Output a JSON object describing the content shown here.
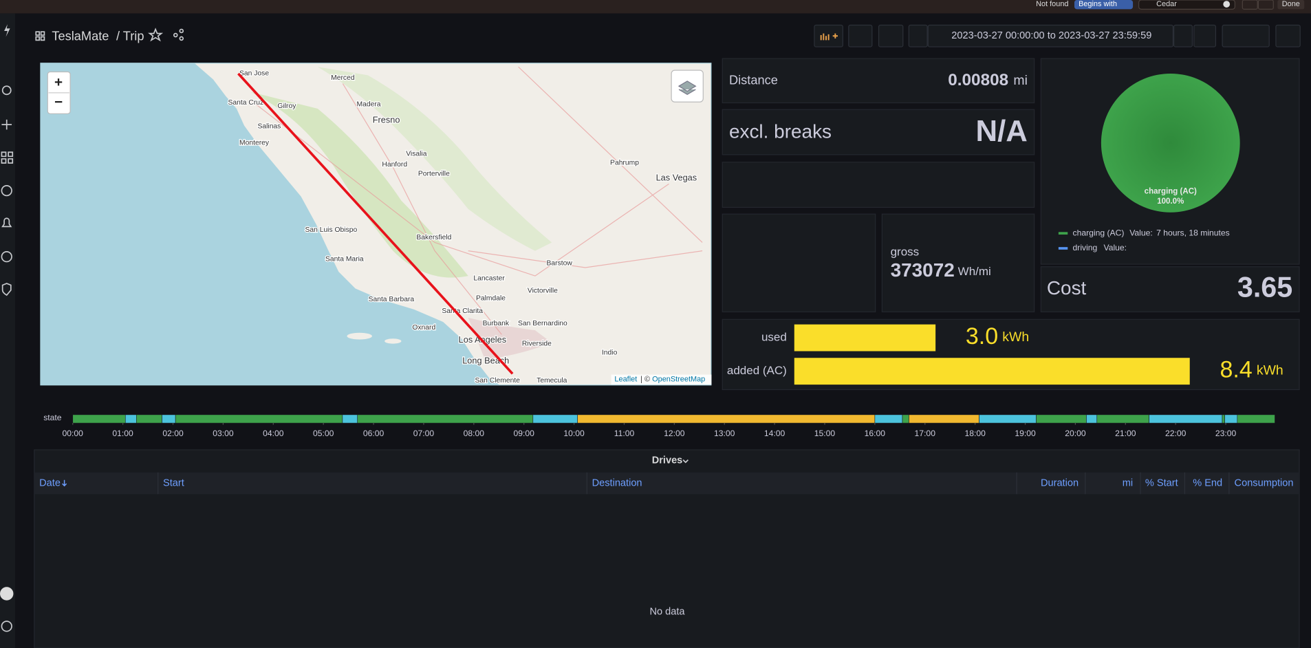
{
  "browser_bar": {
    "status": "Not found",
    "match_mode": "Begins with",
    "search": "Cedar",
    "done": "Done"
  },
  "header": {
    "title": "TeslaMate",
    "page": "/ Trip",
    "time_range": "2023-03-27 00:00:00 to 2023-03-27 23:59:59"
  },
  "map": {
    "zoom_in": "+",
    "zoom_out": "−",
    "labels": [
      "San Jose",
      "Merced",
      "Madera",
      "Fresno",
      "Santa Cruz",
      "Gilroy",
      "Salinas",
      "Monterey",
      "Visalia",
      "Hanford",
      "Porterville",
      "Pahrump",
      "Las Vegas",
      "San Luis Obispo",
      "Bakersfield",
      "Santa Maria",
      "Lancaster",
      "Palmdale",
      "Barstow",
      "Victorville",
      "Santa Barbara",
      "Santa Clarita",
      "Burbank",
      "San Bernardino",
      "Oxnard",
      "Los Angeles",
      "Riverside",
      "Long Beach",
      "Indio",
      "San Clemente",
      "Temecula"
    ],
    "attribution_leaflet": "Leaflet",
    "attribution_sep": "| ©",
    "attribution_osm": "OpenStreetMap"
  },
  "stats": {
    "distance": {
      "label": "Distance",
      "value": "0.00808",
      "unit": "mi"
    },
    "excl_breaks": {
      "label": "excl. breaks",
      "value": "N/A"
    },
    "gross": {
      "label": "gross",
      "value": "373072",
      "unit": "Wh/mi"
    },
    "cost": {
      "label": "Cost",
      "value": "3.65"
    }
  },
  "chart_data": [
    {
      "type": "pie",
      "categories": [
        "charging (AC)",
        "driving"
      ],
      "values": [
        100,
        0
      ],
      "value_labels": [
        "100.0%",
        null
      ],
      "colors": [
        "#3ea34b",
        "#5794f2"
      ],
      "legend_value_prefix": "Value:",
      "legend_values": [
        "7 hours, 18 minutes",
        null
      ]
    },
    {
      "type": "bargauge",
      "categories": [
        "used",
        "added (AC)"
      ],
      "values": [
        3.0,
        8.4
      ],
      "value_labels": [
        "3.0",
        "8.4"
      ],
      "unit": "kWh",
      "color": "#fade2a",
      "xlim": [
        0,
        8.4
      ]
    },
    {
      "type": "state-timeline",
      "label": "state",
      "xlim": [
        0,
        24
      ],
      "segments": [
        {
          "start": 0,
          "end": 1.05,
          "color": "#3ea34b"
        },
        {
          "start": 1.05,
          "end": 1.27,
          "color": "#4cc3dd"
        },
        {
          "start": 1.27,
          "end": 1.78,
          "color": "#3ea34b"
        },
        {
          "start": 1.78,
          "end": 2.05,
          "color": "#4cc3dd"
        },
        {
          "start": 2.05,
          "end": 5.38,
          "color": "#3ea34b"
        },
        {
          "start": 5.38,
          "end": 5.68,
          "color": "#4cc3dd"
        },
        {
          "start": 5.68,
          "end": 9.18,
          "color": "#3ea34b"
        },
        {
          "start": 9.18,
          "end": 10.07,
          "color": "#4cc3dd"
        },
        {
          "start": 10.07,
          "end": 16.0,
          "color": "#f2b930"
        },
        {
          "start": 16.0,
          "end": 16.55,
          "color": "#4cc3dd"
        },
        {
          "start": 16.55,
          "end": 16.68,
          "color": "#3ea34b"
        },
        {
          "start": 16.68,
          "end": 18.08,
          "color": "#f2b930"
        },
        {
          "start": 18.08,
          "end": 19.22,
          "color": "#4cc3dd"
        },
        {
          "start": 19.22,
          "end": 20.22,
          "color": "#3ea34b"
        },
        {
          "start": 20.22,
          "end": 20.43,
          "color": "#4cc3dd"
        },
        {
          "start": 20.43,
          "end": 21.47,
          "color": "#3ea34b"
        },
        {
          "start": 21.47,
          "end": 22.93,
          "color": "#4cc3dd"
        },
        {
          "start": 22.93,
          "end": 22.98,
          "color": "#3ea34b"
        },
        {
          "start": 22.98,
          "end": 23.23,
          "color": "#4cc3dd"
        },
        {
          "start": 23.23,
          "end": 23.98,
          "color": "#3ea34b"
        }
      ],
      "xticks": [
        {
          "value": 0,
          "label": "00:00"
        },
        {
          "value": 1,
          "label": "01:00"
        },
        {
          "value": 2,
          "label": "02:00"
        },
        {
          "value": 3,
          "label": "03:00"
        },
        {
          "value": 4,
          "label": "04:00"
        },
        {
          "value": 5,
          "label": "05:00"
        },
        {
          "value": 6,
          "label": "06:00"
        },
        {
          "value": 7,
          "label": "07:00"
        },
        {
          "value": 8,
          "label": "08:00"
        },
        {
          "value": 9,
          "label": "09:00"
        },
        {
          "value": 10,
          "label": "10:00"
        },
        {
          "value": 11,
          "label": "11:00"
        },
        {
          "value": 12,
          "label": "12:00"
        },
        {
          "value": 13,
          "label": "13:00"
        },
        {
          "value": 14,
          "label": "14:00"
        },
        {
          "value": 15,
          "label": "15:00"
        },
        {
          "value": 16,
          "label": "16:00"
        },
        {
          "value": 17,
          "label": "17:00"
        },
        {
          "value": 18,
          "label": "18:00"
        },
        {
          "value": 19,
          "label": "19:00"
        },
        {
          "value": 20,
          "label": "20:00"
        },
        {
          "value": 21,
          "label": "21:00"
        },
        {
          "value": 22,
          "label": "22:00"
        },
        {
          "value": 23,
          "label": "23:00"
        }
      ]
    }
  ],
  "table": {
    "title": "Drives",
    "columns": [
      "Date",
      "Start",
      "Destination",
      "Duration",
      "mi",
      "% Start",
      "% End",
      "Consumption"
    ],
    "empty": "No data"
  }
}
